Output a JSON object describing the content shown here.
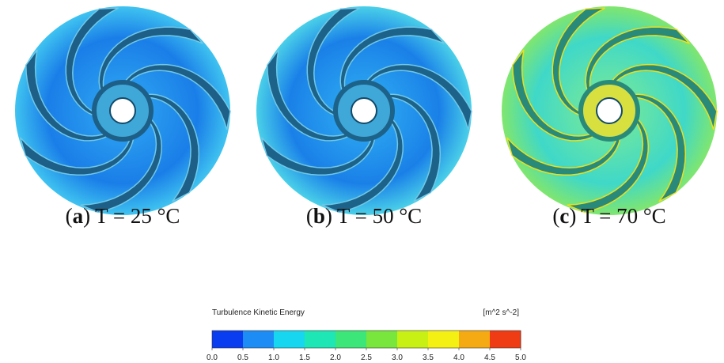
{
  "panels": [
    {
      "open": "(",
      "letter": "a",
      "close": ")",
      "caption": "T = 25 °C"
    },
    {
      "open": "(",
      "letter": "b",
      "close": ")",
      "caption": "T = 50 °C"
    },
    {
      "open": "(",
      "letter": "c",
      "close": ")",
      "caption": "T = 70 °C"
    }
  ],
  "legend": {
    "title": "Turbulence Kinetic Energy",
    "unit": "[m^2 s^-2]",
    "colors": [
      "#0a3cf0",
      "#1e8cf5",
      "#17d7f0",
      "#1ee6b4",
      "#3ce678",
      "#78e63c",
      "#c8f014",
      "#f5f014",
      "#f5aa14",
      "#f03c14"
    ],
    "ticks": [
      "0.0",
      "0.5",
      "1.0",
      "1.5",
      "2.0",
      "2.5",
      "3.0",
      "3.5",
      "4.0",
      "4.5",
      "5.0"
    ]
  }
}
